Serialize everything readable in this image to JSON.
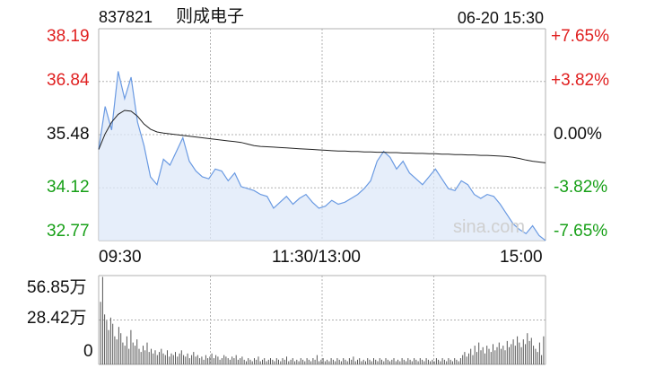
{
  "header": {
    "code": "837821",
    "name": "则成电子",
    "datetime": "06-20 15:30"
  },
  "watermark": "sina.com",
  "colors": {
    "up": "#e02020",
    "down": "#18a018",
    "flat": "#000000",
    "price_line": "#6a9ae2",
    "avg_line": "#222222",
    "area_fill": "#dde8f8",
    "grid": "#b0b0b0",
    "volume_bar": "#555555"
  },
  "chart_data": [
    {
      "type": "line",
      "title": "",
      "x_ticks": [
        "09:30",
        "11:30/13:00",
        "15:00"
      ],
      "y_left_ticks": [
        "38.19",
        "36.84",
        "35.48",
        "34.12",
        "32.77"
      ],
      "y_right_ticks": [
        "+7.65%",
        "+3.82%",
        "0.00%",
        "-3.82%",
        "-7.65%"
      ],
      "ylim": [
        32.77,
        38.19
      ],
      "prev_close": 35.48,
      "series": [
        {
          "values": [
            35.1,
            36.2,
            35.6,
            37.1,
            36.4,
            36.95,
            35.8,
            35.2,
            34.4,
            34.2,
            34.85,
            34.7,
            35.05,
            35.4,
            34.8,
            34.55,
            34.4,
            34.35,
            34.6,
            34.55,
            34.3,
            34.5,
            34.15,
            34.1,
            34.05,
            33.95,
            33.9,
            33.6,
            33.75,
            33.9,
            33.7,
            33.85,
            33.95,
            33.75,
            33.6,
            33.65,
            33.8,
            33.7,
            33.75,
            33.85,
            33.95,
            34.1,
            34.3,
            34.8,
            35.05,
            34.9,
            34.6,
            34.8,
            34.5,
            34.35,
            34.2,
            34.4,
            34.6,
            34.35,
            34.1,
            34.05,
            34.3,
            34.2,
            33.95,
            33.85,
            33.95,
            33.9,
            33.7,
            33.45,
            33.2,
            33.05,
            32.95,
            33.15,
            32.9,
            32.77
          ],
          "unit": "price"
        },
        {
          "values": [
            35.1,
            35.5,
            35.8,
            36.0,
            36.1,
            36.08,
            35.95,
            35.75,
            35.62,
            35.55,
            35.52,
            35.5,
            35.48,
            35.46,
            35.44,
            35.42,
            35.4,
            35.38,
            35.36,
            35.34,
            35.32,
            35.3,
            35.28,
            35.24,
            35.2,
            35.18,
            35.17,
            35.16,
            35.15,
            35.14,
            35.13,
            35.12,
            35.11,
            35.1,
            35.09,
            35.08,
            35.07,
            35.06,
            35.06,
            35.05,
            35.05,
            35.04,
            35.04,
            35.03,
            35.03,
            35.02,
            35.02,
            35.01,
            35.01,
            35.0,
            35.0,
            34.99,
            34.99,
            34.98,
            34.98,
            34.97,
            34.97,
            34.96,
            34.96,
            34.95,
            34.95,
            34.94,
            34.93,
            34.92,
            34.9,
            34.87,
            34.83,
            34.8,
            34.78,
            34.76
          ],
          "unit": "avg_price"
        }
      ]
    },
    {
      "type": "bar",
      "title": "",
      "y_ticks": [
        "56.85万",
        "28.42万",
        "0"
      ],
      "ylim": [
        0,
        56.85
      ],
      "values": [
        40,
        56,
        32,
        28,
        22,
        30,
        26,
        18,
        16,
        24,
        20,
        14,
        12,
        18,
        10,
        22,
        14,
        12,
        16,
        10,
        8,
        12,
        9,
        14,
        8,
        10,
        7,
        9,
        6,
        8,
        10,
        7,
        6,
        9,
        5,
        7,
        6,
        8,
        5,
        7,
        9,
        6,
        5,
        7,
        4,
        6,
        8,
        5,
        6,
        4,
        5,
        3,
        6,
        4,
        5,
        7,
        4,
        6,
        5,
        3,
        4,
        6,
        5,
        4,
        3,
        5,
        4,
        6,
        3,
        4,
        5,
        3,
        2,
        4,
        3,
        2,
        4,
        3,
        5,
        2,
        3,
        4,
        2,
        3,
        4,
        3,
        2,
        4,
        3,
        2,
        4,
        3,
        5,
        2,
        3,
        4,
        2,
        3,
        2,
        4,
        3,
        2,
        4,
        3,
        2,
        4,
        3,
        6,
        2,
        3,
        4,
        2,
        3,
        2,
        4,
        3,
        2,
        4,
        3,
        2,
        4,
        3,
        2,
        4,
        3,
        5,
        2,
        3,
        4,
        2,
        3,
        2,
        4,
        3,
        2,
        4,
        3,
        2,
        4,
        3,
        2,
        4,
        3,
        2,
        3,
        4,
        2,
        3,
        2,
        4,
        3,
        2,
        4,
        3,
        2,
        4,
        3,
        2,
        4,
        3,
        2,
        4,
        3,
        2,
        3,
        2,
        4,
        3,
        2,
        4,
        3,
        2,
        4,
        3,
        2,
        4,
        3,
        2,
        4,
        6,
        8,
        5,
        7,
        10,
        6,
        12,
        8,
        14,
        9,
        11,
        7,
        12,
        10,
        8,
        13,
        9,
        11,
        14,
        10,
        12,
        9,
        15,
        11,
        13,
        16,
        12,
        18,
        14,
        11,
        16,
        13,
        20,
        15,
        17,
        12,
        10,
        8,
        14,
        6,
        18
      ]
    }
  ]
}
